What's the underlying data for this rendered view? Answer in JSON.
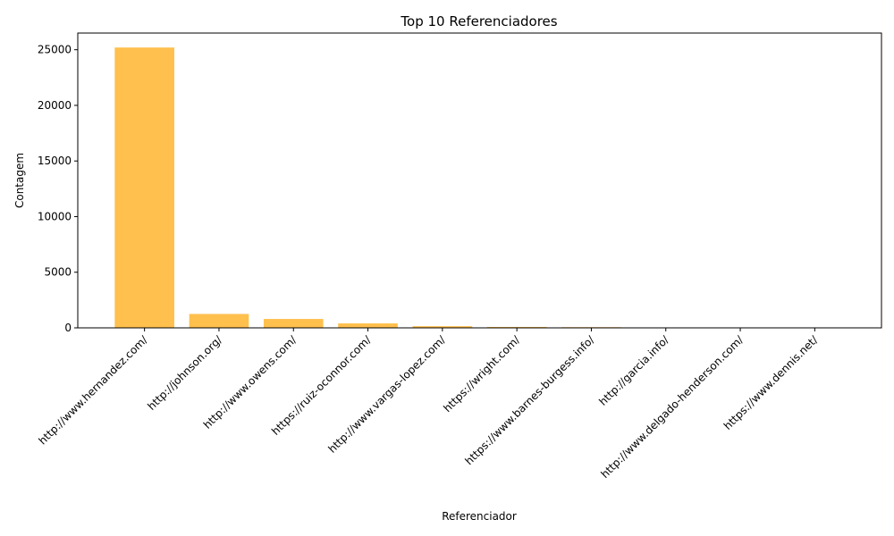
{
  "chart_data": {
    "type": "bar",
    "title": "Top 10 Referenciadores",
    "xlabel": "Referenciador",
    "ylabel": "Contagem",
    "categories": [
      "http://www.hernandez.com/",
      "http://johnson.org/",
      "http://www.owens.com/",
      "https://ruiz-oconnor.com/",
      "http://www.vargas-lopez.com/",
      "https://wright.com/",
      "https://www.barnes-burgess.info/",
      "http://garcia.info/",
      "http://www.delgado-henderson.com/",
      "https://www.dennis.net/"
    ],
    "values": [
      25200,
      1250,
      800,
      400,
      150,
      80,
      60,
      25,
      15,
      10
    ],
    "ylim": [
      0,
      26500
    ],
    "yticks": [
      0,
      5000,
      10000,
      15000,
      20000,
      25000
    ],
    "bar_color": "#ffc04d",
    "grid": false
  }
}
